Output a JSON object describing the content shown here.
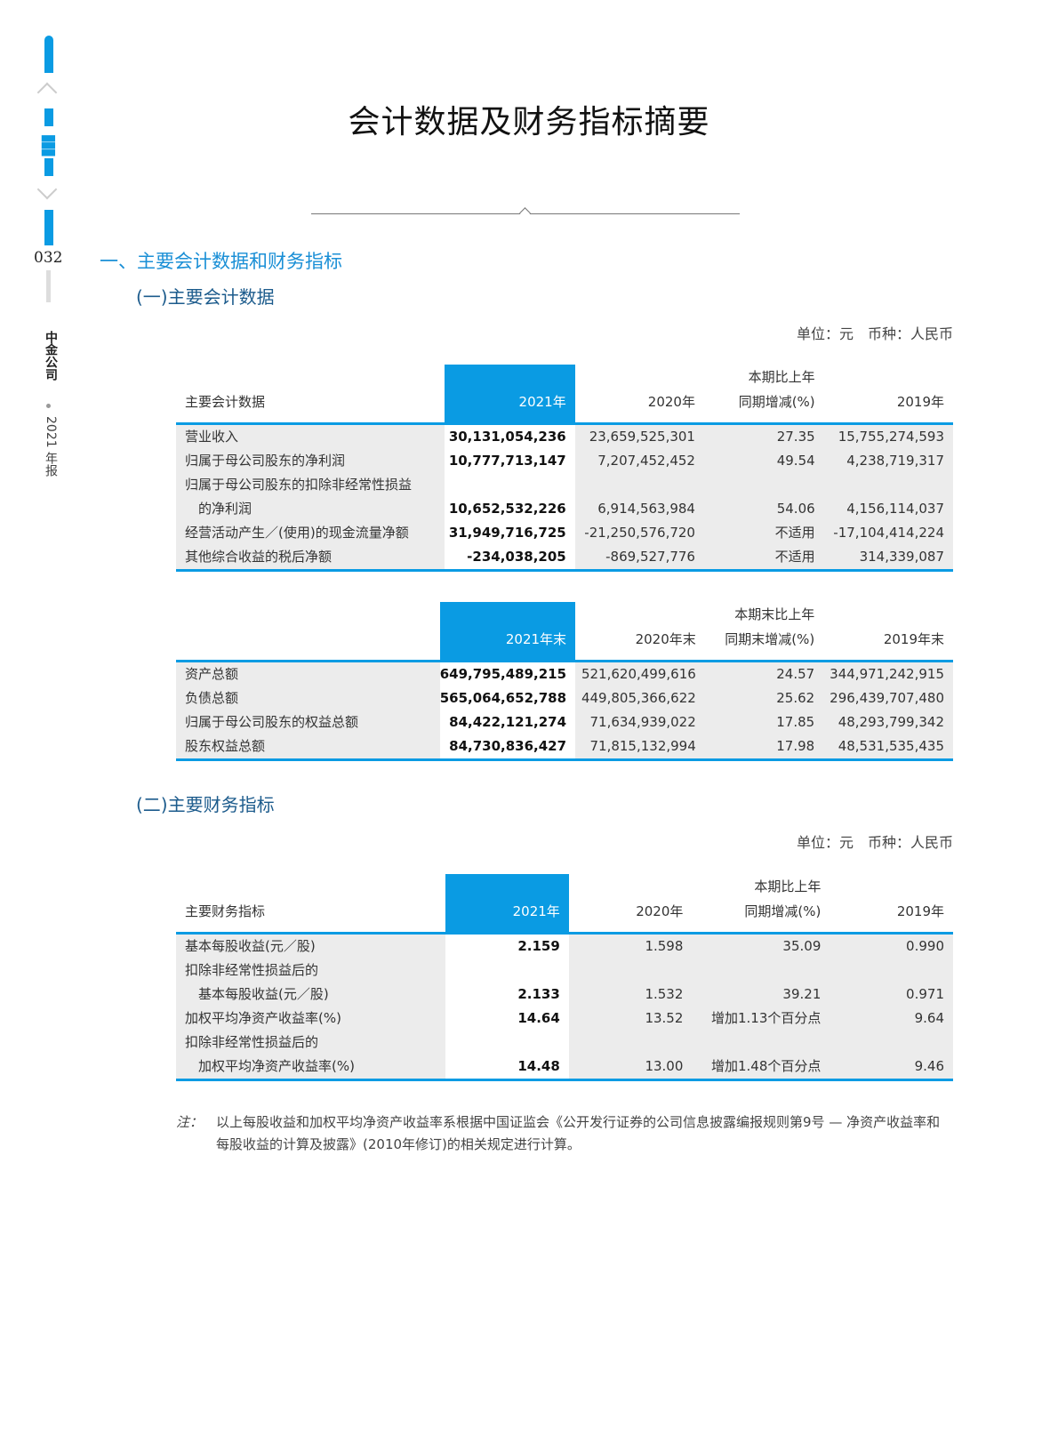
{
  "sidebar": {
    "page_number": "032",
    "company": "中金公司",
    "report": "2021 年报",
    "colors": {
      "accent": "#0a9be3"
    },
    "icons": [
      "chevron-up-icon",
      "menu-list-icon",
      "chevron-down-icon"
    ]
  },
  "title": "会计数据及财务指标摘要",
  "section1": "一、主要会计数据和财务指标",
  "sub1": "(一)主要会计数据",
  "sub2": "(二)主要财务指标",
  "unit": "单位：元　币种：人民币",
  "tables": [
    {
      "headers": [
        "主要会计数据",
        "2021年",
        "2020年",
        "本期比上年\n同期增减(%)",
        "2019年"
      ],
      "rows": [
        [
          "营业收入",
          "30,131,054,236",
          "23,659,525,301",
          "27.35",
          "15,755,274,593"
        ],
        [
          "归属于母公司股东的净利润",
          "10,777,713,147",
          "7,207,452,452",
          "49.54",
          "4,238,719,317"
        ],
        [
          "归属于母公司股东的扣除非经常性损益",
          "",
          "",
          "",
          ""
        ],
        [
          "　的净利润",
          "10,652,532,226",
          "6,914,563,984",
          "54.06",
          "4,156,114,037"
        ],
        [
          "经营活动产生／(使用)的现金流量净额",
          "31,949,716,725",
          "-21,250,576,720",
          "不适用",
          "-17,104,414,224"
        ],
        [
          "其他综合收益的税后净额",
          "-234,038,205",
          "-869,527,776",
          "不适用",
          "314,339,087"
        ]
      ]
    },
    {
      "headers": [
        "",
        "2021年末",
        "2020年末",
        "本期末比上年\n同期末增减(%)",
        "2019年末"
      ],
      "rows": [
        [
          "资产总额",
          "649,795,489,215",
          "521,620,499,616",
          "24.57",
          "344,971,242,915"
        ],
        [
          "负债总额",
          "565,064,652,788",
          "449,805,366,622",
          "25.62",
          "296,439,707,480"
        ],
        [
          "归属于母公司股东的权益总额",
          "84,422,121,274",
          "71,634,939,022",
          "17.85",
          "48,293,799,342"
        ],
        [
          "股东权益总额",
          "84,730,836,427",
          "71,815,132,994",
          "17.98",
          "48,531,535,435"
        ]
      ]
    },
    {
      "headers": [
        "主要财务指标",
        "2021年",
        "2020年",
        "本期比上年\n同期增减(%)",
        "2019年"
      ],
      "rows": [
        [
          "基本每股收益(元／股)",
          "2.159",
          "1.598",
          "35.09",
          "0.990"
        ],
        [
          "扣除非经常性损益后的",
          "",
          "",
          "",
          ""
        ],
        [
          "　基本每股收益(元／股)",
          "2.133",
          "1.532",
          "39.21",
          "0.971"
        ],
        [
          "加权平均净资产收益率(%)",
          "14.64",
          "13.52",
          "增加1.13个百分点",
          "9.64"
        ],
        [
          "扣除非经常性损益后的",
          "",
          "",
          "",
          ""
        ],
        [
          "　加权平均净资产收益率(%)",
          "14.48",
          "13.00",
          "增加1.48个百分点",
          "9.46"
        ]
      ]
    }
  ],
  "note": {
    "label": "注：",
    "text": "以上每股收益和加权平均净资产收益率系根据中国证监会《公开发行证券的公司信息披露编报规则第9号 — 净资产收益率和每股收益的计算及披露》(2010年修订)的相关规定进行计算。"
  }
}
